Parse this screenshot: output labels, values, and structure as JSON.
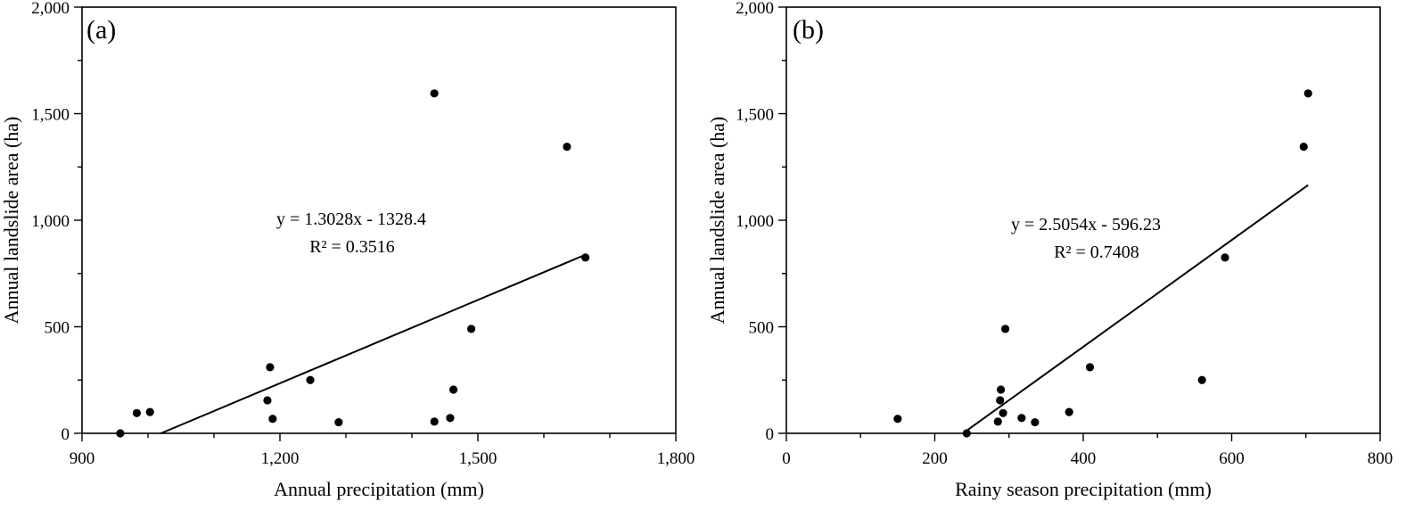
{
  "chart_data": [
    {
      "type": "scatter",
      "panel_label": "(a)",
      "xlabel": "Annual precipitation (mm)",
      "ylabel": "Annual landslide area (ha)",
      "xlim": [
        900,
        1800
      ],
      "ylim": [
        0,
        2000
      ],
      "x_major_ticks": [
        900,
        1200,
        1500,
        1800
      ],
      "x_tick_labels": [
        "900",
        "1,200",
        "1,500",
        "1,800"
      ],
      "x_minor_step": 100,
      "y_major_ticks": [
        0,
        500,
        1000,
        1500,
        2000
      ],
      "y_tick_labels": [
        "0",
        "500",
        "1,000",
        "1,500",
        "2,000"
      ],
      "y_minor_step": 250,
      "points": [
        {
          "x": 958,
          "y": 0
        },
        {
          "x": 983,
          "y": 95
        },
        {
          "x": 1003,
          "y": 100
        },
        {
          "x": 1181,
          "y": 155
        },
        {
          "x": 1185,
          "y": 310
        },
        {
          "x": 1189,
          "y": 68
        },
        {
          "x": 1246,
          "y": 250
        },
        {
          "x": 1289,
          "y": 52
        },
        {
          "x": 1434,
          "y": 1595
        },
        {
          "x": 1434,
          "y": 55
        },
        {
          "x": 1458,
          "y": 72
        },
        {
          "x": 1463,
          "y": 205
        },
        {
          "x": 1490,
          "y": 490
        },
        {
          "x": 1635,
          "y": 1345
        },
        {
          "x": 1663,
          "y": 825
        }
      ],
      "trendline": {
        "slope": 1.3028,
        "intercept": -1328.4,
        "x_range": [
          1019.6,
          1663
        ]
      },
      "equation": "y = 1.3028x  - 1328.4",
      "r_squared": "R² = 0.3516"
    },
    {
      "type": "scatter",
      "panel_label": "(b)",
      "xlabel": "Rainy season precipitation (mm)",
      "ylabel": "Annual landslide area (ha)",
      "xlim": [
        0,
        800
      ],
      "ylim": [
        0,
        2000
      ],
      "x_major_ticks": [
        0,
        200,
        400,
        600,
        800
      ],
      "x_tick_labels": [
        "0",
        "200",
        "400",
        "600",
        "800"
      ],
      "x_minor_step": 100,
      "y_major_ticks": [
        0,
        500,
        1000,
        1500,
        2000
      ],
      "y_tick_labels": [
        "0",
        "500",
        "1,000",
        "1,500",
        "2,000"
      ],
      "y_minor_step": 250,
      "points": [
        {
          "x": 150,
          "y": 68
        },
        {
          "x": 243,
          "y": 0
        },
        {
          "x": 285,
          "y": 55
        },
        {
          "x": 288,
          "y": 155
        },
        {
          "x": 289,
          "y": 205
        },
        {
          "x": 292,
          "y": 95
        },
        {
          "x": 295,
          "y": 490
        },
        {
          "x": 317,
          "y": 72
        },
        {
          "x": 335,
          "y": 52
        },
        {
          "x": 381,
          "y": 100
        },
        {
          "x": 409,
          "y": 310
        },
        {
          "x": 560,
          "y": 250
        },
        {
          "x": 591,
          "y": 825
        },
        {
          "x": 697,
          "y": 1345
        },
        {
          "x": 703,
          "y": 1595
        }
      ],
      "trendline": {
        "slope": 2.5054,
        "intercept": -596.23,
        "x_range": [
          243,
          703
        ]
      },
      "equation": "y = 2.5054x  - 596.23",
      "r_squared": "R² = 0.7408"
    }
  ]
}
